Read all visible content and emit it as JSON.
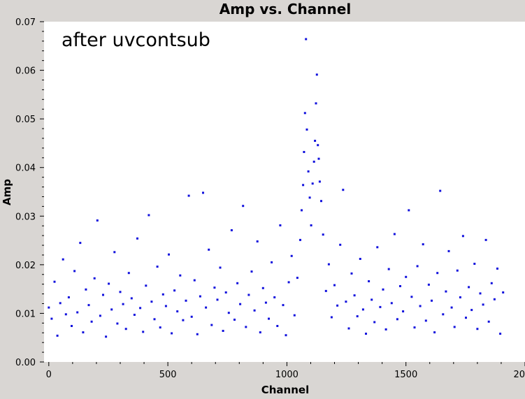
{
  "chart_data": {
    "type": "scatter",
    "title": "Amp vs. Channel",
    "xlabel": "Channel",
    "ylabel": "Amp",
    "annotation": "after uvcontsub",
    "xlim": [
      -20,
      2000
    ],
    "ylim": [
      0,
      0.07
    ],
    "x_ticks": [
      0,
      500,
      1000,
      1500,
      2000
    ],
    "x_tick_labels": [
      "0",
      "500",
      "1000",
      "1500",
      "2000"
    ],
    "y_ticks": [
      0,
      0.01,
      0.02,
      0.03,
      0.04,
      0.05,
      0.06,
      0.07
    ],
    "y_tick_labels": [
      "0.00",
      "0.01",
      "0.02",
      "0.03",
      "0.04",
      "0.05",
      "0.06",
      "0.07"
    ],
    "grid": false,
    "series": [
      {
        "color": "#1111dd",
        "marker": "square",
        "points": [
          [
            0,
            0.0112
          ],
          [
            12,
            0.0089
          ],
          [
            24,
            0.0165
          ],
          [
            36,
            0.0054
          ],
          [
            48,
            0.0121
          ],
          [
            60,
            0.0211
          ],
          [
            72,
            0.0098
          ],
          [
            84,
            0.0133
          ],
          [
            96,
            0.0074
          ],
          [
            108,
            0.0187
          ],
          [
            120,
            0.0102
          ],
          [
            132,
            0.0245
          ],
          [
            144,
            0.0061
          ],
          [
            156,
            0.0149
          ],
          [
            168,
            0.0117
          ],
          [
            180,
            0.0083
          ],
          [
            192,
            0.0172
          ],
          [
            204,
            0.0291
          ],
          [
            216,
            0.0095
          ],
          [
            228,
            0.0138
          ],
          [
            240,
            0.0052
          ],
          [
            252,
            0.0161
          ],
          [
            264,
            0.0108
          ],
          [
            276,
            0.0226
          ],
          [
            288,
            0.0079
          ],
          [
            300,
            0.0144
          ],
          [
            312,
            0.0119
          ],
          [
            324,
            0.0068
          ],
          [
            336,
            0.0183
          ],
          [
            348,
            0.0131
          ],
          [
            360,
            0.0097
          ],
          [
            372,
            0.0254
          ],
          [
            384,
            0.0111
          ],
          [
            396,
            0.0062
          ],
          [
            408,
            0.0157
          ],
          [
            420,
            0.0302
          ],
          [
            432,
            0.0124
          ],
          [
            444,
            0.0088
          ],
          [
            456,
            0.0196
          ],
          [
            468,
            0.0071
          ],
          [
            480,
            0.0139
          ],
          [
            492,
            0.0115
          ],
          [
            504,
            0.0221
          ],
          [
            516,
            0.0059
          ],
          [
            528,
            0.0147
          ],
          [
            540,
            0.0104
          ],
          [
            552,
            0.0178
          ],
          [
            564,
            0.0086
          ],
          [
            576,
            0.0126
          ],
          [
            588,
            0.0342
          ],
          [
            600,
            0.0093
          ],
          [
            612,
            0.0168
          ],
          [
            624,
            0.0057
          ],
          [
            636,
            0.0135
          ],
          [
            648,
            0.0348
          ],
          [
            660,
            0.0112
          ],
          [
            672,
            0.0231
          ],
          [
            684,
            0.0076
          ],
          [
            696,
            0.0153
          ],
          [
            708,
            0.0128
          ],
          [
            720,
            0.0194
          ],
          [
            732,
            0.0064
          ],
          [
            744,
            0.0143
          ],
          [
            756,
            0.0101
          ],
          [
            768,
            0.0271
          ],
          [
            780,
            0.0087
          ],
          [
            792,
            0.0162
          ],
          [
            804,
            0.0119
          ],
          [
            816,
            0.0321
          ],
          [
            828,
            0.0072
          ],
          [
            840,
            0.0138
          ],
          [
            852,
            0.0186
          ],
          [
            864,
            0.0106
          ],
          [
            876,
            0.0248
          ],
          [
            888,
            0.0061
          ],
          [
            900,
            0.0152
          ],
          [
            912,
            0.0122
          ],
          [
            924,
            0.0089
          ],
          [
            936,
            0.0205
          ],
          [
            948,
            0.0133
          ],
          [
            960,
            0.0074
          ],
          [
            972,
            0.0281
          ],
          [
            984,
            0.0117
          ],
          [
            996,
            0.0055
          ],
          [
            1008,
            0.0164
          ],
          [
            1020,
            0.0218
          ],
          [
            1032,
            0.0096
          ],
          [
            1044,
            0.0173
          ],
          [
            1056,
            0.0251
          ],
          [
            1062,
            0.0312
          ],
          [
            1068,
            0.0364
          ],
          [
            1072,
            0.0432
          ],
          [
            1076,
            0.0512
          ],
          [
            1080,
            0.0664
          ],
          [
            1084,
            0.0478
          ],
          [
            1090,
            0.0392
          ],
          [
            1096,
            0.0338
          ],
          [
            1102,
            0.0281
          ],
          [
            1108,
            0.0367
          ],
          [
            1114,
            0.0412
          ],
          [
            1118,
            0.0455
          ],
          [
            1122,
            0.0532
          ],
          [
            1126,
            0.0591
          ],
          [
            1130,
            0.0446
          ],
          [
            1134,
            0.0418
          ],
          [
            1138,
            0.0371
          ],
          [
            1144,
            0.0331
          ],
          [
            1152,
            0.0262
          ],
          [
            1164,
            0.0146
          ],
          [
            1176,
            0.0201
          ],
          [
            1188,
            0.0092
          ],
          [
            1200,
            0.0158
          ],
          [
            1212,
            0.0116
          ],
          [
            1224,
            0.0241
          ],
          [
            1236,
            0.0354
          ],
          [
            1248,
            0.0124
          ],
          [
            1260,
            0.0069
          ],
          [
            1272,
            0.0182
          ],
          [
            1284,
            0.0137
          ],
          [
            1296,
            0.0094
          ],
          [
            1308,
            0.0212
          ],
          [
            1320,
            0.0108
          ],
          [
            1332,
            0.0058
          ],
          [
            1344,
            0.0166
          ],
          [
            1356,
            0.0128
          ],
          [
            1368,
            0.0082
          ],
          [
            1380,
            0.0236
          ],
          [
            1392,
            0.0113
          ],
          [
            1404,
            0.0149
          ],
          [
            1416,
            0.0067
          ],
          [
            1428,
            0.0191
          ],
          [
            1440,
            0.0121
          ],
          [
            1452,
            0.0263
          ],
          [
            1464,
            0.0088
          ],
          [
            1476,
            0.0156
          ],
          [
            1488,
            0.0104
          ],
          [
            1500,
            0.0175
          ],
          [
            1512,
            0.0312
          ],
          [
            1524,
            0.0134
          ],
          [
            1536,
            0.0071
          ],
          [
            1548,
            0.0197
          ],
          [
            1560,
            0.0115
          ],
          [
            1572,
            0.0242
          ],
          [
            1584,
            0.0085
          ],
          [
            1596,
            0.0159
          ],
          [
            1608,
            0.0126
          ],
          [
            1620,
            0.0061
          ],
          [
            1632,
            0.0183
          ],
          [
            1644,
            0.0352
          ],
          [
            1656,
            0.0098
          ],
          [
            1668,
            0.0145
          ],
          [
            1680,
            0.0228
          ],
          [
            1692,
            0.0112
          ],
          [
            1704,
            0.0072
          ],
          [
            1716,
            0.0188
          ],
          [
            1728,
            0.0133
          ],
          [
            1740,
            0.0259
          ],
          [
            1752,
            0.0091
          ],
          [
            1764,
            0.0154
          ],
          [
            1776,
            0.0107
          ],
          [
            1788,
            0.0202
          ],
          [
            1800,
            0.0068
          ],
          [
            1812,
            0.0141
          ],
          [
            1824,
            0.0118
          ],
          [
            1836,
            0.0251
          ],
          [
            1848,
            0.0083
          ],
          [
            1860,
            0.0162
          ],
          [
            1872,
            0.0129
          ],
          [
            1884,
            0.0192
          ],
          [
            1896,
            0.0058
          ],
          [
            1908,
            0.0143
          ]
        ]
      }
    ]
  }
}
